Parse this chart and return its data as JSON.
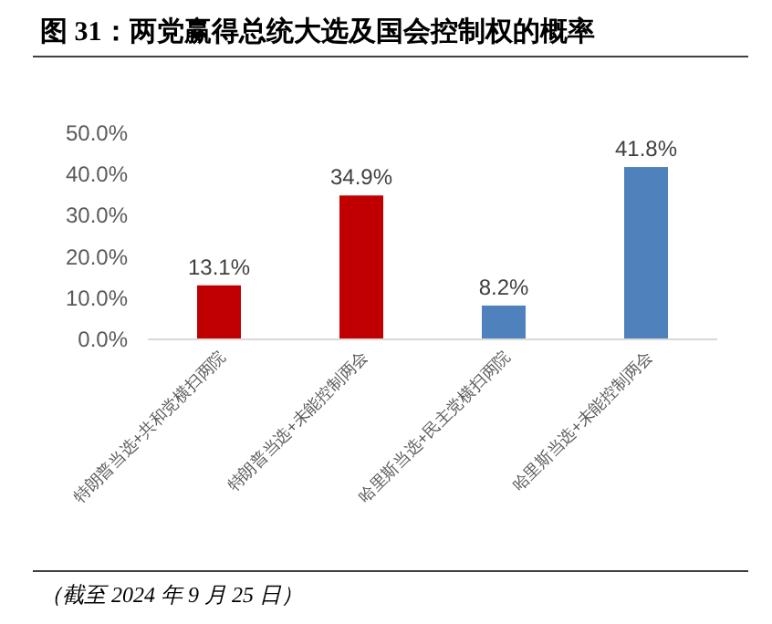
{
  "chart_data": {
    "type": "bar",
    "title": "图 31：两党赢得总统大选及国会控制权的概率",
    "categories": [
      "特朗普当选+共和党横扫两院",
      "特朗普当选+未能控制两会",
      "哈里斯当选+民主党横扫两院",
      "哈里斯当选+未能控制两会"
    ],
    "values": [
      13.1,
      34.9,
      8.2,
      41.8
    ],
    "colors": [
      "#c00000",
      "#c00000",
      "#4f81bd",
      "#4f81bd"
    ],
    "value_labels": [
      "13.1%",
      "34.9%",
      "8.2%",
      "41.8%"
    ],
    "ylim": [
      0,
      50
    ],
    "yticks": [
      {
        "value": 0,
        "label": "0.0%"
      },
      {
        "value": 10,
        "label": "10.0%"
      },
      {
        "value": 20,
        "label": "20.0%"
      },
      {
        "value": 30,
        "label": "30.0%"
      },
      {
        "value": 40,
        "label": "40.0%"
      },
      {
        "value": 50,
        "label": "50.0%"
      }
    ],
    "annotations": [
      "（截至 2024 年 9 月 25 日）"
    ]
  }
}
